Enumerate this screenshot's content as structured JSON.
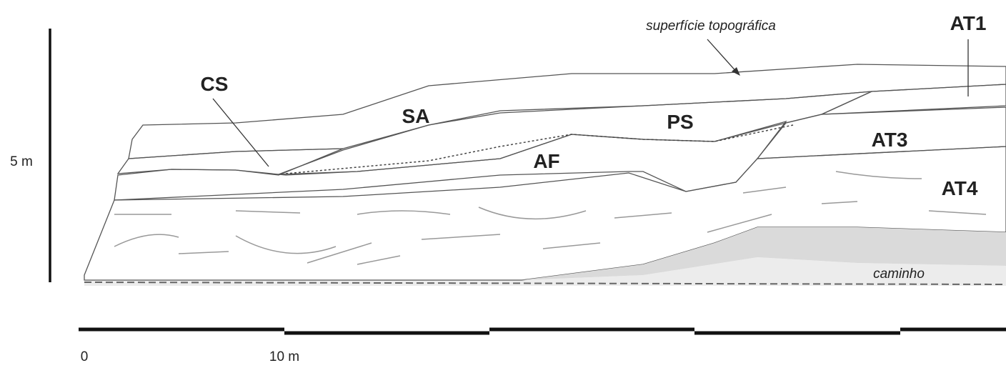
{
  "annotations": {
    "surface": "superfície topográfica",
    "path": "caminho"
  },
  "scale": {
    "vertical": "5 m",
    "horizontal_start": "0",
    "horizontal_mark": "10 m"
  },
  "units": [
    {
      "label": "AT1"
    },
    {
      "label": "CS"
    },
    {
      "label": "SA"
    },
    {
      "label": "PS"
    },
    {
      "label": "AT3"
    },
    {
      "label": "AF"
    },
    {
      "label": "AT4"
    }
  ]
}
